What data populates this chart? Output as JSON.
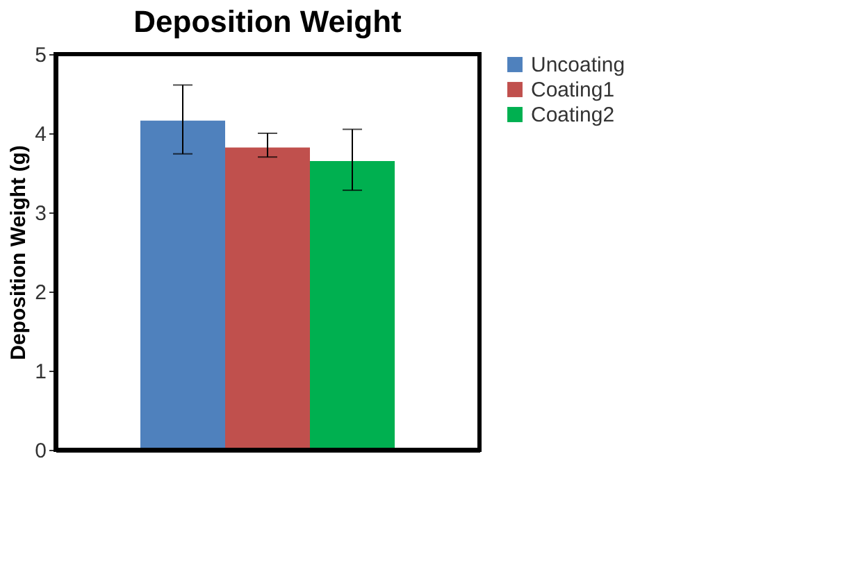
{
  "chart_data": {
    "type": "bar",
    "title": "Deposition Weight",
    "ylabel": "Deposition Weight (g)",
    "categories": [
      null
    ],
    "series": [
      {
        "name": "Uncoating",
        "color": "#4f81bd",
        "values": [
          4.16
        ],
        "errors": [
          [
            3.74,
            4.61
          ]
        ]
      },
      {
        "name": "Coating1",
        "color": "#c0504d",
        "values": [
          3.82
        ],
        "errors": [
          [
            3.7,
            4.0
          ]
        ]
      },
      {
        "name": "Coating2",
        "color": "#00b050",
        "values": [
          3.65
        ],
        "errors": [
          [
            3.28,
            4.05
          ]
        ]
      }
    ],
    "ylim": [
      0,
      5
    ],
    "yticks": [
      0,
      1,
      2,
      3,
      4,
      5
    ],
    "grid": false,
    "legend": "right"
  }
}
